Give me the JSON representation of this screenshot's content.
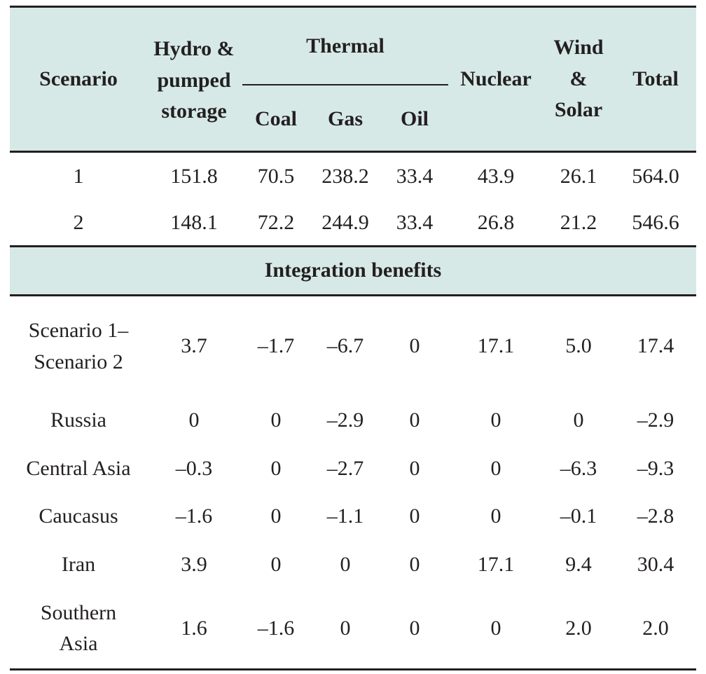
{
  "headers": {
    "scenario": "Scenario",
    "hydro": "Hydro & pumped storage",
    "thermal": "Thermal",
    "coal": "Coal",
    "gas": "Gas",
    "oil": "Oil",
    "nuclear": "Nuclear",
    "wind_solar": "Wind & Solar",
    "total": "Total"
  },
  "scenario_rows": [
    [
      "1",
      "151.8",
      "70.5",
      "238.2",
      "33.4",
      "43.9",
      "26.1",
      "564.0"
    ],
    [
      "2",
      "148.1",
      "72.2",
      "244.9",
      "33.4",
      "26.8",
      "21.2",
      "546.6"
    ]
  ],
  "section_title": "Integration benefits",
  "benefit_rows": [
    [
      "Scenario 1– Scenario 2",
      "3.7",
      "–1.7",
      "–6.7",
      "0",
      "17.1",
      "5.0",
      "17.4"
    ],
    [
      "Russia",
      "0",
      "0",
      "–2.9",
      "0",
      "0",
      "0",
      "–2.9"
    ],
    [
      "Central Asia",
      "–0.3",
      "0",
      "–2.7",
      "0",
      "0",
      "–6.3",
      "–9.3"
    ],
    [
      "Caucasus",
      "–1.6",
      "0",
      "–1.1",
      "0",
      "0",
      "–0.1",
      "–2.8"
    ],
    [
      "Iran",
      "3.9",
      "0",
      "0",
      "0",
      "17.1",
      "9.4",
      "30.4"
    ],
    [
      "Southern Asia",
      "1.6",
      "–1.6",
      "0",
      "0",
      "0",
      "2.0",
      "2.0"
    ]
  ],
  "colors": {
    "header_fill": "#d6e9e6",
    "rule": "#231f20",
    "text": "#231f20"
  }
}
